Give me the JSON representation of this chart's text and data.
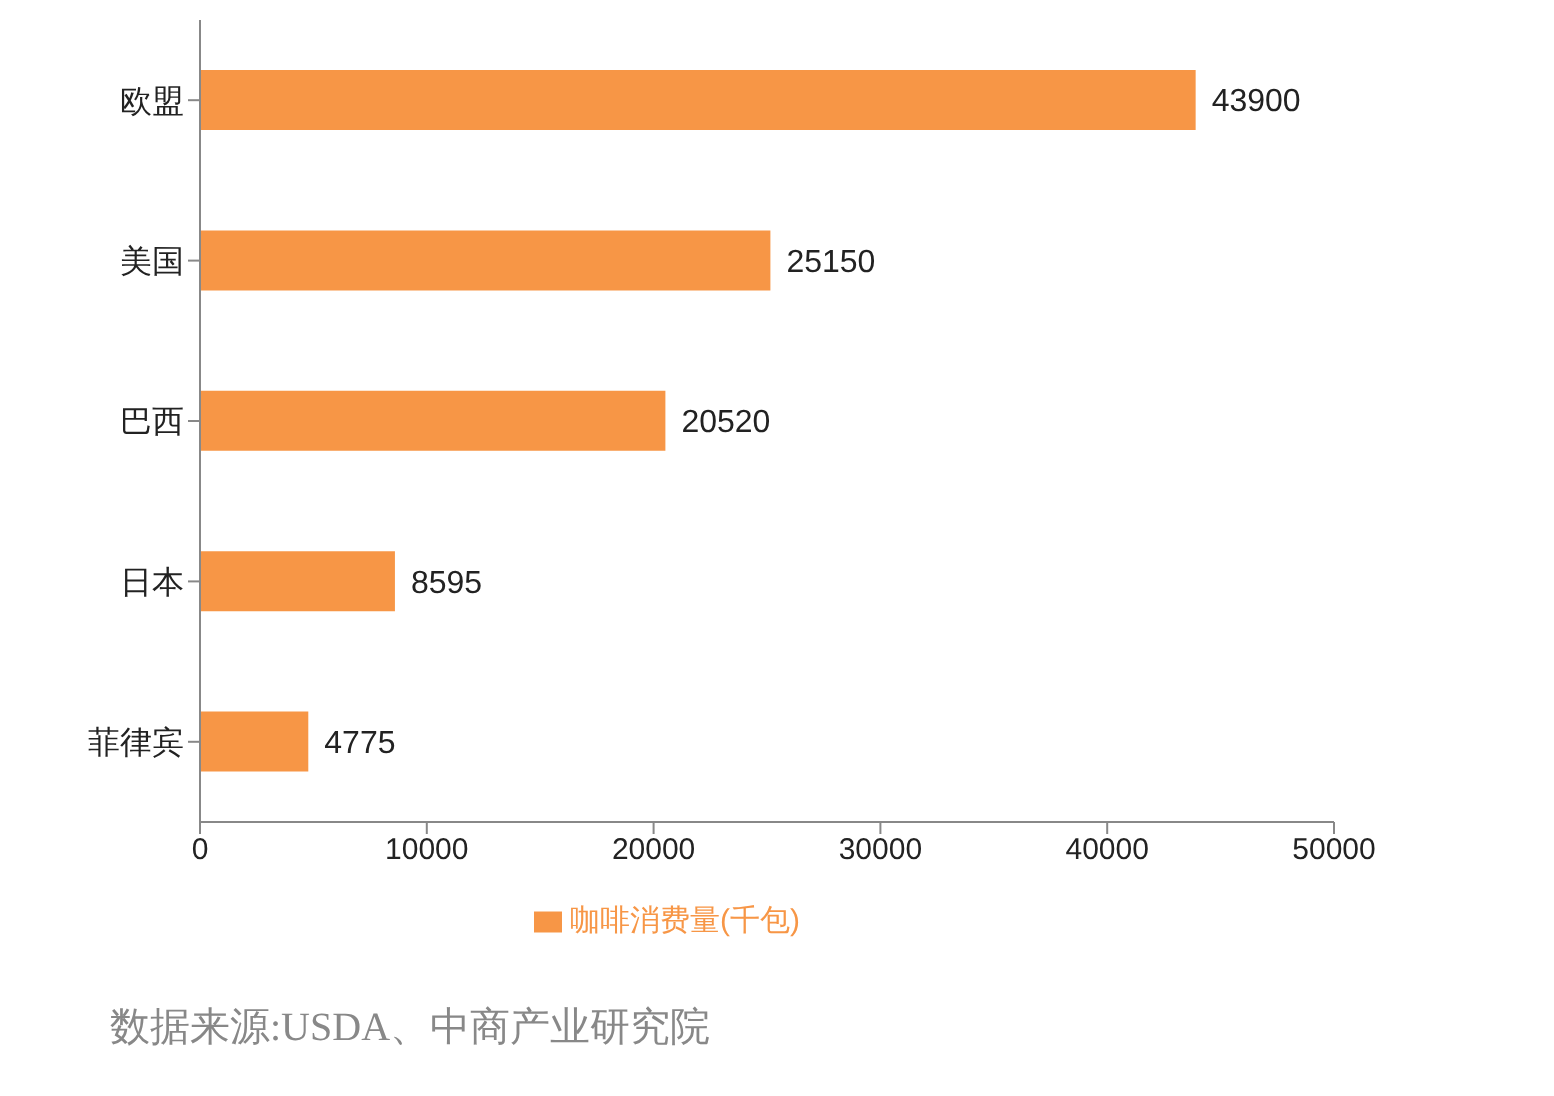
{
  "chart_data": {
    "type": "bar",
    "orientation": "horizontal",
    "categories": [
      "欧盟",
      "美国",
      "巴西",
      "日本",
      "菲律宾"
    ],
    "series": [
      {
        "name": "咖啡消费量(千包)",
        "color": "#f79646",
        "values": [
          43900,
          25150,
          20520,
          8595,
          4775
        ]
      }
    ],
    "xlim": [
      0,
      50000
    ],
    "xticks": [
      0,
      10000,
      20000,
      30000,
      40000,
      50000
    ],
    "data_labels": true,
    "grid": false,
    "legend": "bottom",
    "annotations": [
      "数据来源:USDA、中商产业研究院"
    ]
  }
}
